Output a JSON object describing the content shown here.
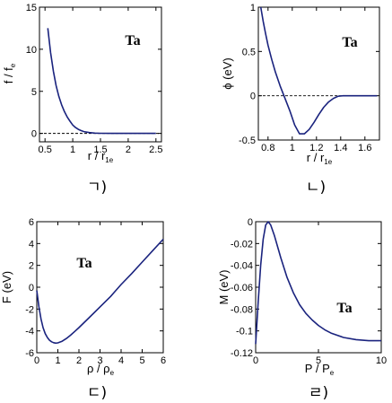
{
  "colors": {
    "curve": "#1a237e",
    "axes": "#000000",
    "zero_line": "#000000"
  },
  "captions": [
    "ㄱ)",
    "ㄴ)",
    "ㄷ)",
    "ㄹ)"
  ],
  "chart_data": [
    {
      "type": "line",
      "panel_tag": "Ta",
      "xlabel": "r / r",
      "xlabel_sub": "1e",
      "ylabel": "f / f",
      "ylabel_sub": "e",
      "xlim": [
        0.4,
        2.6
      ],
      "ylim": [
        -1,
        15
      ],
      "xticks": [
        0.5,
        1,
        1.5,
        2,
        2.5
      ],
      "xtick_labels": [
        "0.5",
        "1",
        "1.5",
        "2",
        "2.5"
      ],
      "yticks": [
        0,
        5,
        10,
        15
      ],
      "ytick_labels": [
        "0",
        "5",
        "10",
        "15"
      ],
      "zero_line": true,
      "x": [
        0.55,
        0.6,
        0.65,
        0.7,
        0.75,
        0.8,
        0.85,
        0.9,
        0.95,
        1.0,
        1.05,
        1.1,
        1.15,
        1.2,
        1.3,
        1.4,
        1.5,
        1.7,
        2.0,
        2.3,
        2.5
      ],
      "y": [
        12.5,
        9.6,
        7.4,
        5.7,
        4.4,
        3.4,
        2.6,
        1.95,
        1.45,
        1.0,
        0.7,
        0.48,
        0.33,
        0.22,
        0.1,
        0.04,
        0.01,
        0.0,
        0.0,
        0.0,
        0.0
      ]
    },
    {
      "type": "line",
      "panel_tag": "Ta",
      "xlabel": "r / r",
      "xlabel_sub": "1e",
      "ylabel": "ϕ (eV)",
      "ylabel_sub": "",
      "xlim": [
        0.72,
        1.72
      ],
      "ylim": [
        -0.5,
        1
      ],
      "xticks": [
        0.8,
        1.0,
        1.2,
        1.4,
        1.6
      ],
      "xtick_labels": [
        "0.8",
        "1",
        "1.2",
        "1.4",
        "1.6"
      ],
      "yticks": [
        -0.5,
        0,
        0.5,
        1
      ],
      "ytick_labels": [
        "-0.5",
        "0",
        "0.5",
        "1"
      ],
      "zero_line": true,
      "x": [
        0.74,
        0.76,
        0.78,
        0.8,
        0.83,
        0.86,
        0.9,
        0.94,
        0.98,
        1.02,
        1.06,
        1.1,
        1.14,
        1.18,
        1.22,
        1.26,
        1.3,
        1.34,
        1.38,
        1.42,
        1.5,
        1.6,
        1.7
      ],
      "y": [
        1.0,
        0.84,
        0.7,
        0.57,
        0.41,
        0.27,
        0.11,
        -0.03,
        -0.17,
        -0.33,
        -0.43,
        -0.43,
        -0.38,
        -0.3,
        -0.21,
        -0.13,
        -0.07,
        -0.03,
        -0.005,
        0.0,
        0.0,
        0.0,
        0.0
      ]
    },
    {
      "type": "line",
      "panel_tag": "Ta",
      "xlabel": "ρ / ρ",
      "xlabel_sub": "e",
      "ylabel": "F (eV)",
      "ylabel_sub": "",
      "xlim": [
        0,
        6
      ],
      "ylim": [
        -6,
        6
      ],
      "xticks": [
        0,
        1,
        2,
        3,
        4,
        5,
        6
      ],
      "xtick_labels": [
        "0",
        "1",
        "2",
        "3",
        "4",
        "5",
        "6"
      ],
      "yticks": [
        -6,
        -4,
        -2,
        0,
        2,
        4,
        6
      ],
      "ytick_labels": [
        "-6",
        "-4",
        "-2",
        "0",
        "2",
        "4",
        "6"
      ],
      "zero_line": false,
      "x": [
        0.0,
        0.1,
        0.2,
        0.3,
        0.4,
        0.5,
        0.6,
        0.7,
        0.8,
        0.9,
        1.0,
        1.2,
        1.4,
        1.6,
        1.8,
        2.0,
        2.5,
        3.0,
        3.5,
        4.0,
        4.5,
        5.0,
        5.5,
        6.0
      ],
      "y": [
        -0.3,
        -1.8,
        -2.9,
        -3.7,
        -4.25,
        -4.6,
        -4.85,
        -5.0,
        -5.08,
        -5.12,
        -5.1,
        -4.95,
        -4.7,
        -4.4,
        -4.05,
        -3.7,
        -2.75,
        -1.8,
        -0.85,
        0.25,
        1.25,
        2.3,
        3.35,
        4.4
      ]
    },
    {
      "type": "line",
      "panel_tag": "Ta",
      "xlabel": "P / P",
      "xlabel_sub": "e",
      "ylabel": "M (eV)",
      "ylabel_sub": "",
      "xlim": [
        0,
        10
      ],
      "ylim": [
        -0.12,
        0
      ],
      "xticks": [
        0,
        5,
        10
      ],
      "xtick_labels": [
        "0",
        "5",
        "10"
      ],
      "yticks": [
        0,
        -0.02,
        -0.04,
        -0.06,
        -0.08,
        -0.1,
        -0.12
      ],
      "ytick_labels": [
        "0",
        "-0.02",
        "-0.04",
        "-0.06",
        "-0.08",
        "-0.1",
        "-0.12"
      ],
      "zero_line": false,
      "x": [
        0.0,
        0.2,
        0.4,
        0.6,
        0.8,
        1.0,
        1.2,
        1.5,
        1.8,
        2.0,
        2.5,
        3.0,
        3.5,
        4.0,
        4.5,
        5.0,
        5.5,
        6.0,
        7.0,
        8.0,
        9.0,
        10.0
      ],
      "y": [
        -0.112,
        -0.074,
        -0.04,
        -0.016,
        -0.003,
        0.0,
        -0.003,
        -0.013,
        -0.025,
        -0.033,
        -0.051,
        -0.065,
        -0.076,
        -0.084,
        -0.09,
        -0.095,
        -0.099,
        -0.102,
        -0.106,
        -0.108,
        -0.109,
        -0.109
      ]
    }
  ]
}
